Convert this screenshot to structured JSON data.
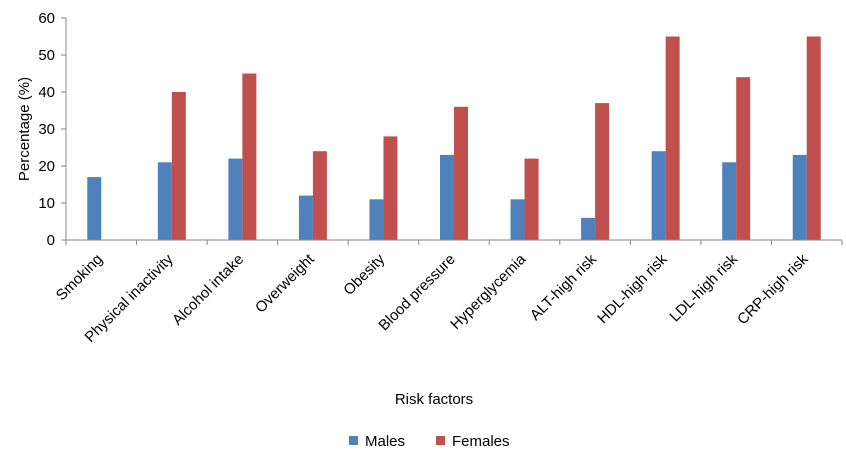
{
  "chart_data": {
    "type": "bar",
    "title": "",
    "xlabel": "Risk factors",
    "ylabel": "Percentage (%)",
    "ylim": [
      0,
      60
    ],
    "yticks": [
      0,
      10,
      20,
      30,
      40,
      50,
      60
    ],
    "grid": false,
    "legend": "bottom",
    "categories": [
      "Smoking",
      "Physical inactivity",
      "Alcohol intake",
      "Overweight",
      "Obesity",
      "Blood pressure",
      "Hyperglycemia",
      "ALT-high risk",
      "HDL-high risk",
      "LDL-high risk",
      "CRP-high risk"
    ],
    "series": [
      {
        "name": "Males",
        "color": "#4f81bd",
        "values": [
          17,
          21,
          22,
          12,
          11,
          23,
          11,
          6,
          24,
          21,
          23
        ]
      },
      {
        "name": "Females",
        "color": "#c0504d",
        "values": [
          0,
          40,
          45,
          24,
          28,
          36,
          22,
          37,
          55,
          44,
          55
        ]
      }
    ]
  }
}
